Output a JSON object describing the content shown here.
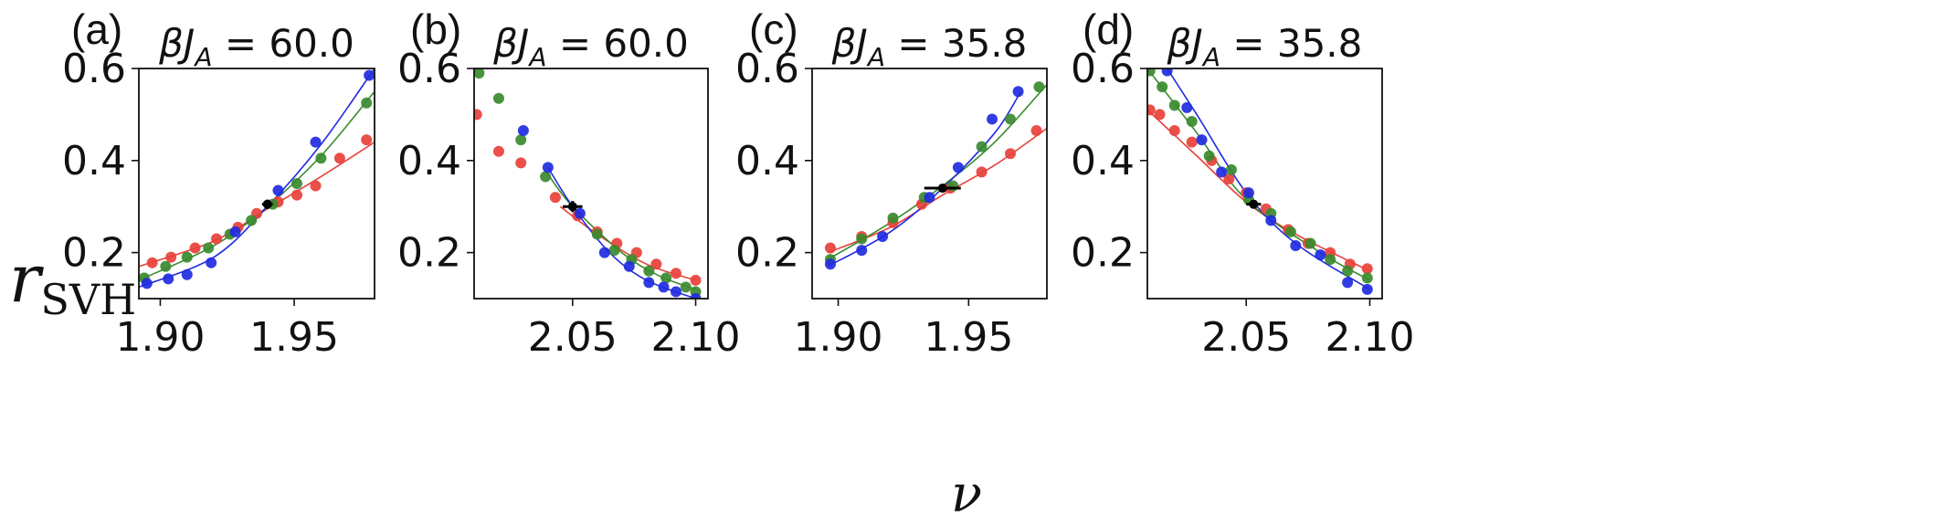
{
  "figure": {
    "ylabel_main": "r",
    "ylabel_sub": "SVH",
    "xlabel": "ν"
  },
  "chart_data": [
    {
      "type": "scatter",
      "panel": "(a)",
      "title_prefix": "βJ",
      "title_sub": "A",
      "title_suffix": " = 60.0",
      "xlim": [
        1.892,
        1.98
      ],
      "ylim": [
        0.1,
        0.6
      ],
      "xticks": [
        1.9,
        1.95
      ],
      "xtick_labels": [
        "1.90",
        "1.95"
      ],
      "yticks": [
        0.2,
        0.4,
        0.6
      ],
      "ytick_labels": [
        "0.2",
        "0.4",
        "0.6"
      ],
      "series": [
        {
          "color": "#e8413a",
          "fit": [
            [
              1.892,
              0.17
            ],
            [
              1.92,
              0.225
            ],
            [
              1.94,
              0.295
            ],
            [
              1.96,
              0.365
            ],
            [
              1.98,
              0.44
            ]
          ],
          "x": [
            1.897,
            1.904,
            1.913,
            1.921,
            1.929,
            1.936,
            1.944,
            1.951,
            1.958,
            1.967,
            1.977
          ],
          "y": [
            0.178,
            0.19,
            0.21,
            0.23,
            0.255,
            0.285,
            0.31,
            0.325,
            0.345,
            0.405,
            0.445
          ]
        },
        {
          "color": "#3a8a2e",
          "fit": [
            [
              1.892,
              0.14
            ],
            [
              1.92,
              0.215
            ],
            [
              1.94,
              0.3
            ],
            [
              1.96,
              0.41
            ],
            [
              1.98,
              0.55
            ]
          ],
          "x": [
            1.894,
            1.902,
            1.91,
            1.918,
            1.926,
            1.934,
            1.942,
            1.951,
            1.96,
            1.977
          ],
          "y": [
            0.145,
            0.17,
            0.19,
            0.21,
            0.24,
            0.27,
            0.305,
            0.35,
            0.405,
            0.525
          ]
        },
        {
          "color": "#1f2be0",
          "fit": [
            [
              1.892,
              0.125
            ],
            [
              1.92,
              0.19
            ],
            [
              1.94,
              0.3
            ],
            [
              1.96,
              0.435
            ],
            [
              1.98,
              0.6
            ]
          ],
          "x": [
            1.895,
            1.903,
            1.91,
            1.919,
            1.928,
            1.944,
            1.958,
            1.978
          ],
          "y": [
            0.133,
            0.143,
            0.152,
            0.178,
            0.245,
            0.335,
            0.44,
            0.585
          ]
        }
      ],
      "crossing": {
        "x": 1.94,
        "y": 0.305,
        "xerr": 0.002,
        "yerr": 0.01
      }
    },
    {
      "type": "scatter",
      "panel": "(b)",
      "title_prefix": "βJ",
      "title_sub": "A",
      "title_suffix": " = 60.0",
      "xlim": [
        2.01,
        2.105
      ],
      "ylim": [
        0.1,
        0.6
      ],
      "xticks": [
        2.05,
        2.1
      ],
      "xtick_labels": [
        "2.05",
        "2.10"
      ],
      "yticks": [
        0.2,
        0.4,
        0.6
      ],
      "ytick_labels": [
        "0.2",
        "0.4",
        "0.6"
      ],
      "series": [
        {
          "color": "#e8413a",
          "fit": [
            [
              2.045,
              0.3
            ],
            [
              2.06,
              0.24
            ],
            [
              2.08,
              0.175
            ],
            [
              2.1,
              0.14
            ]
          ],
          "x": [
            2.011,
            2.02,
            2.029,
            2.043,
            2.052,
            2.06,
            2.068,
            2.076,
            2.084,
            2.092,
            2.1
          ],
          "y": [
            0.5,
            0.42,
            0.395,
            0.32,
            0.28,
            0.245,
            0.22,
            0.2,
            0.175,
            0.155,
            0.14
          ]
        },
        {
          "color": "#3a8a2e",
          "fit": [
            [
              2.04,
              0.37
            ],
            [
              2.05,
              0.3
            ],
            [
              2.07,
              0.2
            ],
            [
              2.085,
              0.15
            ],
            [
              2.1,
              0.12
            ]
          ],
          "x": [
            2.012,
            2.02,
            2.029,
            2.039,
            2.06,
            2.067,
            2.074,
            2.081,
            2.088,
            2.096,
            2.1
          ],
          "y": [
            0.59,
            0.535,
            0.445,
            0.365,
            0.24,
            0.205,
            0.185,
            0.16,
            0.145,
            0.125,
            0.115
          ]
        },
        {
          "color": "#1f2be0",
          "fit": [
            [
              2.04,
              0.385
            ],
            [
              2.05,
              0.3
            ],
            [
              2.065,
              0.2
            ],
            [
              2.08,
              0.14
            ],
            [
              2.1,
              0.1
            ]
          ],
          "x": [
            2.03,
            2.04,
            2.053,
            2.063,
            2.073,
            2.081,
            2.087,
            2.092,
            2.1
          ],
          "y": [
            0.465,
            0.385,
            0.285,
            0.2,
            0.17,
            0.135,
            0.125,
            0.115,
            0.1
          ]
        }
      ],
      "crossing": {
        "x": 2.05,
        "y": 0.3,
        "xerr": 0.004,
        "yerr": 0.012
      }
    },
    {
      "type": "scatter",
      "panel": "(c)",
      "title_prefix": "βJ",
      "title_sub": "A",
      "title_suffix": " = 35.8",
      "xlim": [
        1.89,
        1.98
      ],
      "ylim": [
        0.1,
        0.6
      ],
      "xticks": [
        1.9,
        1.95
      ],
      "xtick_labels": [
        "1.90",
        "1.95"
      ],
      "yticks": [
        0.2,
        0.4,
        0.6
      ],
      "ytick_labels": [
        "0.2",
        "0.4",
        "0.6"
      ],
      "series": [
        {
          "color": "#e8413a",
          "fit": [
            [
              1.896,
              0.2
            ],
            [
              1.92,
              0.255
            ],
            [
              1.94,
              0.325
            ],
            [
              1.96,
              0.39
            ],
            [
              1.98,
              0.47
            ]
          ],
          "x": [
            1.897,
            1.909,
            1.921,
            1.932,
            1.943,
            1.955,
            1.966,
            1.976
          ],
          "y": [
            0.21,
            0.235,
            0.265,
            0.305,
            0.34,
            0.375,
            0.415,
            0.465
          ]
        },
        {
          "color": "#3a8a2e",
          "fit": [
            [
              1.896,
              0.185
            ],
            [
              1.92,
              0.265
            ],
            [
              1.94,
              0.345
            ],
            [
              1.96,
              0.44
            ],
            [
              1.98,
              0.565
            ]
          ],
          "x": [
            1.897,
            1.909,
            1.921,
            1.933,
            1.944,
            1.955,
            1.966,
            1.977
          ],
          "y": [
            0.185,
            0.23,
            0.275,
            0.32,
            0.345,
            0.43,
            0.49,
            0.56
          ]
        },
        {
          "color": "#1f2be0",
          "fit": [
            [
              1.896,
              0.17
            ],
            [
              1.92,
              0.245
            ],
            [
              1.94,
              0.34
            ],
            [
              1.96,
              0.46
            ],
            [
              1.97,
              0.55
            ]
          ],
          "x": [
            1.897,
            1.909,
            1.917,
            1.935,
            1.946,
            1.959,
            1.969
          ],
          "y": [
            0.175,
            0.205,
            0.235,
            0.32,
            0.385,
            0.49,
            0.55
          ]
        }
      ],
      "crossing": {
        "x": 1.94,
        "y": 0.34,
        "xerr": 0.007,
        "yerr": 0.008
      }
    },
    {
      "type": "scatter",
      "panel": "(d)",
      "title_prefix": "βJ",
      "title_sub": "A",
      "title_suffix": " = 35.8",
      "xlim": [
        2.01,
        2.105
      ],
      "ylim": [
        0.1,
        0.6
      ],
      "xticks": [
        2.05,
        2.1
      ],
      "xtick_labels": [
        "2.05",
        "2.10"
      ],
      "yticks": [
        0.2,
        0.4,
        0.6
      ],
      "ytick_labels": [
        "0.2",
        "0.4",
        "0.6"
      ],
      "series": [
        {
          "color": "#e8413a",
          "fit": [
            [
              2.01,
              0.51
            ],
            [
              2.03,
              0.41
            ],
            [
              2.05,
              0.31
            ],
            [
              2.07,
              0.24
            ],
            [
              2.1,
              0.16
            ]
          ],
          "x": [
            2.011,
            2.015,
            2.021,
            2.028,
            2.036,
            2.043,
            2.05,
            2.058,
            2.067,
            2.075,
            2.084,
            2.092,
            2.099
          ],
          "y": [
            0.51,
            0.5,
            0.465,
            0.44,
            0.4,
            0.36,
            0.33,
            0.295,
            0.25,
            0.22,
            0.2,
            0.175,
            0.165
          ]
        },
        {
          "color": "#3a8a2e",
          "fit": [
            [
              2.01,
              0.6
            ],
            [
              2.03,
              0.46
            ],
            [
              2.05,
              0.315
            ],
            [
              2.08,
              0.2
            ],
            [
              2.1,
              0.14
            ]
          ],
          "x": [
            2.011,
            2.016,
            2.021,
            2.028,
            2.035,
            2.044,
            2.051,
            2.06,
            2.068,
            2.076,
            2.084,
            2.091,
            2.099
          ],
          "y": [
            0.595,
            0.56,
            0.52,
            0.485,
            0.41,
            0.38,
            0.315,
            0.285,
            0.245,
            0.22,
            0.185,
            0.16,
            0.145
          ]
        },
        {
          "color": "#1f2be0",
          "fit": [
            [
              2.018,
              0.6
            ],
            [
              2.03,
              0.5
            ],
            [
              2.05,
              0.33
            ],
            [
              2.07,
              0.22
            ],
            [
              2.1,
              0.12
            ]
          ],
          "x": [
            2.018,
            2.026,
            2.032,
            2.04,
            2.051,
            2.06,
            2.07,
            2.08,
            2.091,
            2.099
          ],
          "y": [
            0.595,
            0.515,
            0.445,
            0.375,
            0.33,
            0.27,
            0.215,
            0.195,
            0.135,
            0.12
          ]
        }
      ],
      "crossing": {
        "x": 2.053,
        "y": 0.305,
        "xerr": 0.003,
        "yerr": 0.008
      }
    }
  ]
}
